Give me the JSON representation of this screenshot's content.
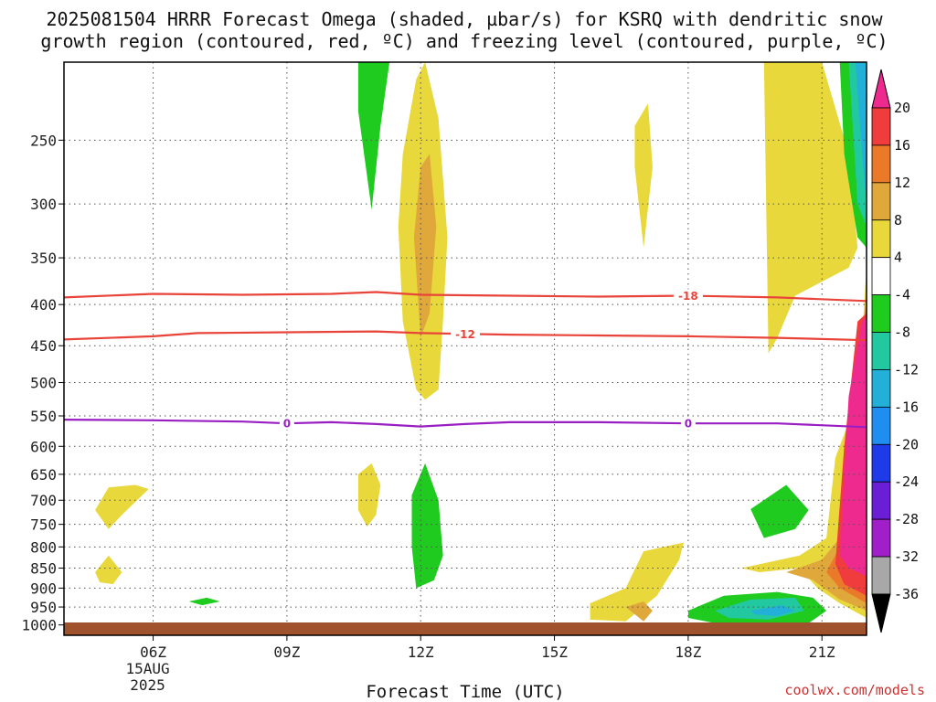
{
  "title_line1": "2025081504 HRRR Forecast Omega (shaded, µbar/s) for KSRQ with dendritic snow",
  "title_line2": "growth region (contoured, red, ºC) and freezing level (contoured, purple, ºC)",
  "credit": "coolwx.com/models",
  "colors": {
    "temp_contour": "#e8443a",
    "freezing_contour": "#9a1fc2",
    "ground": "#a0522d",
    "grid": "#555555"
  },
  "chart_data": {
    "type": "heatmap",
    "title": "2025081504 HRRR Forecast Omega (shaded, µbar/s) for KSRQ with dendritic snow growth region (contoured, red, ºC) and freezing level (contoured, purple, ºC)",
    "xlabel": "Forecast Time (UTC)",
    "ylabel": "",
    "x_range_hours_utc": [
      4,
      22
    ],
    "y_range_hpa": [
      200,
      1030
    ],
    "y_scale": "log",
    "grid": true,
    "x_ticks": [
      {
        "hour": 6,
        "label": "06Z",
        "sub1": "15AUG",
        "sub2": "2025"
      },
      {
        "hour": 9,
        "label": "09Z",
        "sub1": "",
        "sub2": ""
      },
      {
        "hour": 12,
        "label": "12Z",
        "sub1": "",
        "sub2": ""
      },
      {
        "hour": 15,
        "label": "15Z",
        "sub1": "",
        "sub2": ""
      },
      {
        "hour": 18,
        "label": "18Z",
        "sub1": "",
        "sub2": ""
      },
      {
        "hour": 21,
        "label": "21Z",
        "sub1": "",
        "sub2": ""
      }
    ],
    "y_ticks": [
      250,
      300,
      350,
      400,
      450,
      500,
      550,
      600,
      650,
      700,
      750,
      800,
      850,
      900,
      950,
      1000
    ],
    "colorbar": {
      "labels": [
        "20",
        "16",
        "12",
        "8",
        "4",
        "-4",
        "-8",
        "-12",
        "-16",
        "-20",
        "-24",
        "-28",
        "-32",
        "-36"
      ],
      "bands": [
        {
          "from": 24,
          "to": 20,
          "color": "#ee2a8e"
        },
        {
          "from": 20,
          "to": 16,
          "color": "#f03c3c"
        },
        {
          "from": 16,
          "to": 12,
          "color": "#ea7a2a"
        },
        {
          "from": 12,
          "to": 8,
          "color": "#e0a83a"
        },
        {
          "from": 8,
          "to": 4,
          "color": "#e8d83c"
        },
        {
          "from": 4,
          "to": -4,
          "color": "#ffffff"
        },
        {
          "from": -4,
          "to": -8,
          "color": "#1ecb1e"
        },
        {
          "from": -8,
          "to": -12,
          "color": "#22c8a0"
        },
        {
          "from": -12,
          "to": -16,
          "color": "#22b0d8"
        },
        {
          "from": -16,
          "to": -20,
          "color": "#1f8ef0"
        },
        {
          "from": -20,
          "to": -24,
          "color": "#1f3ae8"
        },
        {
          "from": -24,
          "to": -28,
          "color": "#6a1fd6"
        },
        {
          "from": -28,
          "to": -32,
          "color": "#a01fc8"
        },
        {
          "from": -32,
          "to": -36,
          "color": "#a8a8a8"
        },
        {
          "from": -36,
          "to": -40,
          "color": "#000000"
        }
      ]
    },
    "contours": [
      {
        "level": "-18",
        "kind": "temperature",
        "hours": [
          4,
          6,
          8,
          10,
          11,
          12,
          14,
          16,
          18,
          20,
          22
        ],
        "hpa": [
          392,
          388,
          389,
          388,
          386,
          389,
          390,
          391,
          390,
          392,
          396
        ],
        "label_at_hour": 18
      },
      {
        "level": "-12",
        "kind": "temperature",
        "hours": [
          4,
          6,
          7,
          9,
          11,
          12,
          14,
          16,
          18,
          20,
          22
        ],
        "hpa": [
          442,
          438,
          434,
          433,
          432,
          434,
          436,
          437,
          438,
          440,
          443
        ],
        "label_at_hour": 13
      },
      {
        "level": "0",
        "kind": "freezing",
        "hours": [
          4,
          6,
          8,
          9,
          10,
          11,
          12,
          13,
          14,
          16,
          18,
          20,
          22
        ],
        "hpa": [
          556,
          557,
          559,
          562,
          560,
          563,
          567,
          563,
          560,
          560,
          562,
          562,
          568
        ],
        "label_at_hour": [
          9,
          18
        ]
      }
    ],
    "omega_regions": [
      {
        "value": "-4 to -8",
        "color": "#1ecb1e",
        "hours": [
          10.6,
          11.3,
          11.1,
          10.9,
          10.6
        ],
        "hpa": [
          200,
          200,
          240,
          305,
          230
        ]
      },
      {
        "value": "-4 to -8",
        "color": "#1ecb1e",
        "hours": [
          11.8,
          12.1,
          12.4,
          12.5,
          12.3,
          11.9,
          11.8
        ],
        "hpa": [
          690,
          630,
          700,
          820,
          880,
          900,
          800
        ]
      },
      {
        "value": "-4 to -8",
        "color": "#1ecb1e",
        "hours": [
          6.8,
          7.2,
          7.5,
          7.1,
          6.8
        ],
        "hpa": [
          935,
          925,
          935,
          945,
          935
        ]
      },
      {
        "value": "-4 to -8",
        "color": "#1ecb1e",
        "hours": [
          19.4,
          20.2,
          20.7,
          20.4,
          19.7,
          19.4
        ],
        "hpa": [
          718,
          670,
          720,
          760,
          780,
          718
        ]
      },
      {
        "value": "-4 to -8",
        "color": "#1ecb1e",
        "hours": [
          18,
          18.8,
          20,
          20.8,
          21.1,
          20.7,
          19.8,
          18.6,
          18,
          18
        ],
        "hpa": [
          960,
          920,
          910,
          925,
          960,
          995,
          1000,
          995,
          980,
          960
        ]
      },
      {
        "value": "-8 to -16",
        "color": "#22c8a0",
        "hours": [
          18.6,
          19.4,
          20.4,
          20.6,
          19.8,
          18.9,
          18.6
        ],
        "hpa": [
          960,
          930,
          925,
          960,
          985,
          980,
          960
        ]
      },
      {
        "value": "-12 to -20",
        "color": "#22b0d8",
        "hours": [
          19.4,
          20.1,
          20.4,
          20,
          19.5,
          19.4
        ],
        "hpa": [
          960,
          945,
          960,
          975,
          970,
          960
        ]
      },
      {
        "value": "4 to 8",
        "color": "#e8d83c",
        "hours": [
          11.9,
          12.1,
          12.4,
          12.6,
          12.5,
          12.4,
          12.1,
          11.9,
          11.6,
          11.5,
          11.6,
          11.9
        ],
        "hpa": [
          210,
          200,
          235,
          330,
          420,
          510,
          525,
          510,
          420,
          320,
          260,
          210
        ]
      },
      {
        "value": "8 to 12",
        "color": "#e0a83a",
        "hours": [
          12,
          12.2,
          12.35,
          12.2,
          12,
          11.85,
          12
        ],
        "hpa": [
          270,
          260,
          320,
          410,
          440,
          330,
          270
        ]
      },
      {
        "value": "4 to 8",
        "color": "#e8d83c",
        "hours": [
          10.6,
          10.9,
          11.1,
          11,
          10.8,
          10.6,
          10.6
        ],
        "hpa": [
          650,
          630,
          670,
          730,
          755,
          720,
          650
        ]
      },
      {
        "value": "4 to 8",
        "color": "#e8d83c",
        "hours": [
          4.7,
          5.0,
          5.6,
          5.9,
          5.3,
          5.0,
          4.7
        ],
        "hpa": [
          720,
          675,
          670,
          678,
          730,
          760,
          720
        ]
      },
      {
        "value": "4 to 8",
        "color": "#e8d83c",
        "hours": [
          4.7,
          5.0,
          5.3,
          5.1,
          4.8,
          4.7
        ],
        "hpa": [
          860,
          820,
          860,
          890,
          885,
          860
        ]
      },
      {
        "value": "4 to 8",
        "color": "#e8d83c",
        "hours": [
          16.8,
          17.1,
          17.2,
          17.0,
          16.8
        ],
        "hpa": [
          240,
          225,
          270,
          340,
          270
        ]
      },
      {
        "value": "4 to 8",
        "color": "#e8d83c",
        "hours": [
          15.8,
          16.6,
          17.0,
          17.9,
          17.8,
          17.3,
          16.6,
          15.8,
          15.8
        ],
        "hpa": [
          940,
          900,
          810,
          790,
          830,
          920,
          990,
          985,
          940
        ]
      },
      {
        "value": "8 to 12",
        "color": "#e0a83a",
        "hours": [
          16.6,
          17.0,
          17.2,
          17.0,
          16.6
        ],
        "hpa": [
          950,
          935,
          960,
          990,
          950
        ]
      },
      {
        "value": "4 to 8",
        "color": "#e8d83c",
        "hours": [
          19.7,
          21.0,
          21.6,
          21.8,
          21.6,
          20.4,
          20.0,
          19.8,
          19.7
        ],
        "hpa": [
          200,
          200,
          260,
          340,
          360,
          390,
          440,
          460,
          200
        ]
      },
      {
        "value": "4 to 8",
        "color": "#e8d83c",
        "hours": [
          19.2,
          20.5,
          21.1,
          21.3,
          21.6,
          21.9,
          22.0,
          22.0,
          21.4,
          20.9,
          20.5,
          19.6,
          19.2
        ],
        "hpa": [
          850,
          820,
          780,
          620,
          560,
          440,
          360,
          980,
          940,
          900,
          850,
          860,
          850
        ]
      },
      {
        "value": "8 to 12",
        "color": "#e0a83a",
        "hours": [
          20.2,
          21.0,
          21.4,
          21.6,
          21.9,
          22.0,
          22.0,
          21.4,
          20.8,
          20.2
        ],
        "hpa": [
          860,
          830,
          780,
          600,
          450,
          380,
          960,
          930,
          880,
          860
        ]
      },
      {
        "value": "12 to 16",
        "color": "#ea7a2a",
        "hours": [
          21.1,
          21.45,
          21.65,
          21.9,
          22.0,
          22.0,
          21.4,
          21.1
        ],
        "hpa": [
          860,
          790,
          600,
          430,
          400,
          940,
          900,
          860
        ]
      },
      {
        "value": "16 to 20",
        "color": "#f03c3c",
        "hours": [
          21.3,
          21.5,
          21.8,
          22.0,
          22.0,
          21.5,
          21.3
        ],
        "hpa": [
          840,
          600,
          420,
          410,
          920,
          890,
          840
        ]
      },
      {
        "value": "20 to 24",
        "color": "#ee2a8e",
        "hours": [
          21.4,
          21.6,
          21.9,
          22.0,
          22.0,
          21.6,
          21.4
        ],
        "hpa": [
          820,
          520,
          420,
          415,
          870,
          850,
          820
        ]
      },
      {
        "value": "-4 to -8",
        "color": "#1ecb1e",
        "hours": [
          21.4,
          22.0,
          22.0,
          21.8,
          21.5,
          21.4
        ],
        "hpa": [
          200,
          200,
          340,
          330,
          260,
          200
        ]
      },
      {
        "value": "-8 to -12",
        "color": "#22c8a0",
        "hours": [
          21.6,
          22.0,
          22.0,
          21.8,
          21.6
        ],
        "hpa": [
          200,
          200,
          320,
          300,
          200
        ]
      },
      {
        "value": "-12 to -16",
        "color": "#22b0d8",
        "hours": [
          21.75,
          22.0,
          22.0,
          21.9,
          21.75
        ],
        "hpa": [
          200,
          200,
          300,
          260,
          200
        ]
      }
    ]
  }
}
